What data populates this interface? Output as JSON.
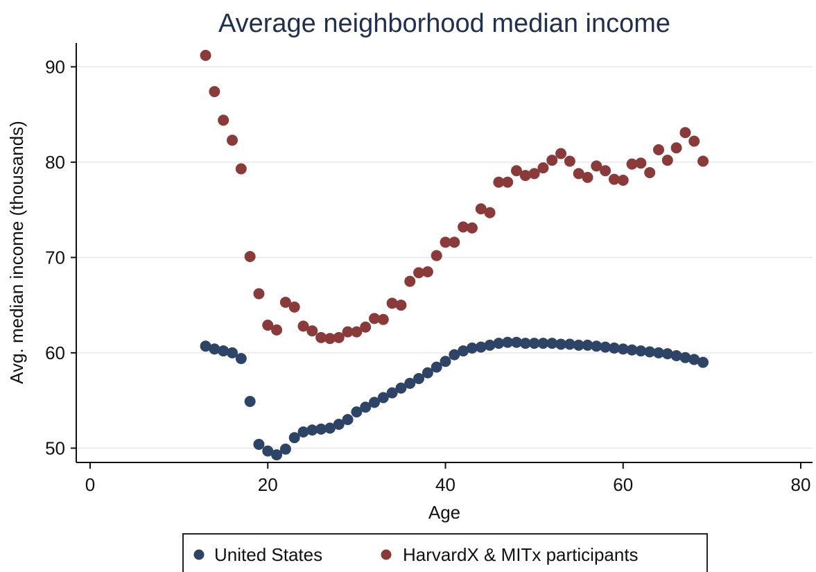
{
  "chart_data": {
    "type": "scatter",
    "title": "Average neighborhood median income",
    "xlabel": "Age",
    "ylabel": "Avg. median income (thousands)",
    "xlim": [
      0,
      80
    ],
    "ylim": [
      48.5,
      92.5
    ],
    "xticks": [
      0,
      20,
      40,
      60,
      80
    ],
    "yticks": [
      50,
      60,
      70,
      80,
      90
    ],
    "grid": "horizontal",
    "legend_position": "bottom",
    "series": [
      {
        "name": "United States",
        "color": "#2e4466",
        "x": [
          13,
          14,
          15,
          16,
          17,
          18,
          19,
          20,
          21,
          22,
          23,
          24,
          25,
          26,
          27,
          28,
          29,
          30,
          31,
          32,
          33,
          34,
          35,
          36,
          37,
          38,
          39,
          40,
          41,
          42,
          43,
          44,
          45,
          46,
          47,
          48,
          49,
          50,
          51,
          52,
          53,
          54,
          55,
          56,
          57,
          58,
          59,
          60,
          61,
          62,
          63,
          64,
          65,
          66,
          67,
          68,
          69
        ],
        "y": [
          60.7,
          60.4,
          60.2,
          60.0,
          59.4,
          54.9,
          50.4,
          49.7,
          49.3,
          49.9,
          51.1,
          51.7,
          51.9,
          52.0,
          52.1,
          52.5,
          53.0,
          53.8,
          54.3,
          54.8,
          55.3,
          55.8,
          56.3,
          56.8,
          57.3,
          57.9,
          58.5,
          59.1,
          59.8,
          60.2,
          60.5,
          60.6,
          60.8,
          61.0,
          61.1,
          61.1,
          61.0,
          61.0,
          61.0,
          61.0,
          60.9,
          60.9,
          60.8,
          60.8,
          60.7,
          60.6,
          60.5,
          60.4,
          60.3,
          60.2,
          60.1,
          60.0,
          59.9,
          59.7,
          59.5,
          59.3,
          59.0
        ]
      },
      {
        "name": "HarvardX & MITx participants",
        "color": "#8b3a3a",
        "x": [
          13,
          14,
          15,
          16,
          17,
          18,
          19,
          20,
          21,
          22,
          23,
          24,
          25,
          26,
          27,
          28,
          29,
          30,
          31,
          32,
          33,
          34,
          35,
          36,
          37,
          38,
          39,
          40,
          41,
          42,
          43,
          44,
          45,
          46,
          47,
          48,
          49,
          50,
          51,
          52,
          53,
          54,
          55,
          56,
          57,
          58,
          59,
          60,
          61,
          62,
          63,
          64,
          65,
          66,
          67,
          68,
          69
        ],
        "y": [
          91.2,
          87.4,
          84.4,
          82.3,
          79.3,
          70.1,
          66.2,
          62.9,
          62.4,
          65.3,
          64.8,
          62.8,
          62.3,
          61.6,
          61.5,
          61.6,
          62.2,
          62.2,
          62.7,
          63.6,
          63.5,
          65.2,
          65.0,
          67.5,
          68.4,
          68.5,
          70.2,
          71.6,
          71.6,
          73.2,
          73.1,
          75.1,
          74.7,
          77.9,
          77.9,
          79.1,
          78.6,
          78.8,
          79.4,
          80.2,
          80.9,
          80.1,
          78.8,
          78.4,
          79.6,
          79.1,
          78.2,
          78.1,
          79.8,
          79.9,
          78.9,
          81.3,
          80.2,
          81.5,
          83.1,
          82.2,
          80.1
        ]
      }
    ]
  }
}
